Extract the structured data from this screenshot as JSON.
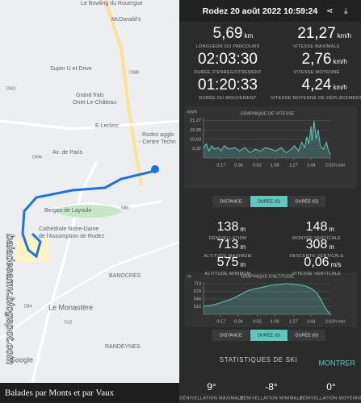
{
  "map": {
    "labels": [
      "Le Bowling du Rouergue",
      "McDonald's",
      "Super U et Drive",
      "Grand frais",
      "Onet-Le-Château",
      "E.Leclerc",
      "Rodez agglo",
      "- Centre Techn",
      "Av. de Paris",
      "Berges de Layoule",
      "Cathédrale Notre-Dame",
      "de l'Assomption de Rodez",
      "BANOCRES",
      "Le Monastère",
      "RANDEYNES",
      "Google",
      "D988",
      "D901",
      "D994",
      "D12",
      "D84",
      "N88"
    ],
    "watermark": "baladesamv.blogspot.com",
    "footer": "Balades par Monts et par Vaux"
  },
  "header": {
    "title": "Rodez 20 août 2022 10:59:24"
  },
  "stats": [
    {
      "value": "5,69",
      "unit": "km",
      "label": "LONGUEUR DU PARCOURS"
    },
    {
      "value": "21,27",
      "unit": "km/h",
      "label": "VITESSE MAXIMALE"
    },
    {
      "value": "02:03:30",
      "label": "DURÉE D'ENREGISTREMENT"
    },
    {
      "value": "2,76",
      "unit": "km/h",
      "label": "VITESSE MOYENNE"
    },
    {
      "value": "01:20:33",
      "label": "DURÉE DU MOUVEMENT"
    },
    {
      "value": "4,24",
      "unit": "km/h",
      "label": "VITESSE MOYENNE DE DÉPLACEMENT"
    }
  ],
  "speed_chart": {
    "type": "line",
    "title": "GRAPHIQUE DE VITESSE",
    "unit": "km/h",
    "x_unit": "h:min",
    "color": "#5ec8bf",
    "xlim": [
      0,
      123.5
    ],
    "ylim": [
      0,
      23
    ],
    "xticks": [
      {
        "value": 17,
        "label": "0:17"
      },
      {
        "value": 34,
        "label": "0:34"
      },
      {
        "value": 52,
        "label": "0:52"
      },
      {
        "value": 69,
        "label": "1:09"
      },
      {
        "value": 87,
        "label": "1:27"
      },
      {
        "value": 104,
        "label": "1:44"
      },
      {
        "value": 122,
        "label": "2:02"
      }
    ],
    "yticks": [
      {
        "value": 21.27,
        "label": "21,27"
      },
      {
        "value": 15.95,
        "label": "15,95"
      },
      {
        "value": 10.63,
        "label": "10,63"
      },
      {
        "value": 5.32,
        "label": "5,32"
      }
    ],
    "x": [
      0,
      3,
      5,
      8,
      11,
      14,
      17,
      20,
      25,
      30,
      35,
      40,
      45,
      50,
      55,
      60,
      65,
      70,
      75,
      80,
      85,
      88,
      92,
      95,
      98,
      100,
      102,
      104,
      105,
      107,
      109,
      111,
      113,
      116,
      119,
      121,
      123
    ],
    "values": [
      6,
      8,
      4,
      7,
      5,
      6,
      4,
      7,
      5,
      6,
      4,
      6,
      3,
      5,
      4,
      6,
      5,
      4,
      6,
      3,
      5,
      7,
      4,
      9,
      6,
      12,
      8,
      18,
      10,
      21.27,
      11,
      16,
      7,
      5,
      9,
      4,
      2
    ]
  },
  "tabs": [
    "DISTANCE",
    "DURÉE (S)",
    "DURÉE (G)"
  ],
  "alt_stats": [
    {
      "value": "138",
      "unit": "m",
      "label": "DÉNIVELLATION"
    },
    {
      "value": "148",
      "unit": "m",
      "label": "MONTÉE VERTICALE"
    },
    {
      "value": "713",
      "unit": "m",
      "label": "ALTITUDE MAXIMUM"
    },
    {
      "value": "308",
      "unit": "m",
      "label": "DESCENTE VERTICALE"
    },
    {
      "value": "575",
      "unit": "m",
      "label": "ALTITUDE MINIMUM"
    },
    {
      "value": "0,06",
      "unit": "m/s",
      "label": "VITESSE VERTICALE"
    }
  ],
  "alt_chart": {
    "type": "line",
    "title": "GRAPHIQUE D'ALTITUDE",
    "unit": "m",
    "x_unit": "h:min",
    "color": "#5ec8bf",
    "xlim": [
      0,
      123.5
    ],
    "ylim": [
      575,
      720
    ],
    "xticks": [
      {
        "value": 17,
        "label": "0:17"
      },
      {
        "value": 34,
        "label": "0:34"
      },
      {
        "value": 52,
        "label": "0:52"
      },
      {
        "value": 69,
        "label": "1:09"
      },
      {
        "value": 87,
        "label": "1:27"
      },
      {
        "value": 104,
        "label": "1:44"
      },
      {
        "value": 122,
        "label": "2:02"
      }
    ],
    "yticks": [
      713,
      679,
      644,
      610
    ],
    "x": [
      0,
      5,
      10,
      15,
      20,
      25,
      30,
      35,
      40,
      45,
      50,
      55,
      60,
      65,
      70,
      75,
      80,
      85,
      90,
      95,
      100,
      105,
      110,
      114,
      117,
      120,
      123.5
    ],
    "values": [
      612,
      614,
      618,
      625,
      633,
      640,
      650,
      662,
      675,
      685,
      690,
      695,
      700,
      705,
      708,
      710,
      713,
      711,
      709,
      706,
      700,
      690,
      670,
      640,
      610,
      590,
      575
    ]
  },
  "ski": {
    "title": "STATISTIQUES DE SKI",
    "button": "MONTRER"
  },
  "slopes": [
    {
      "value": "9°",
      "label": "DÉNIVELLATION MAXIMALE"
    },
    {
      "value": "-8°",
      "label": "DÉNIVELLATION MINIMALE"
    },
    {
      "value": "0°",
      "label": "DÉNIVELLATION MOYENNE"
    }
  ]
}
